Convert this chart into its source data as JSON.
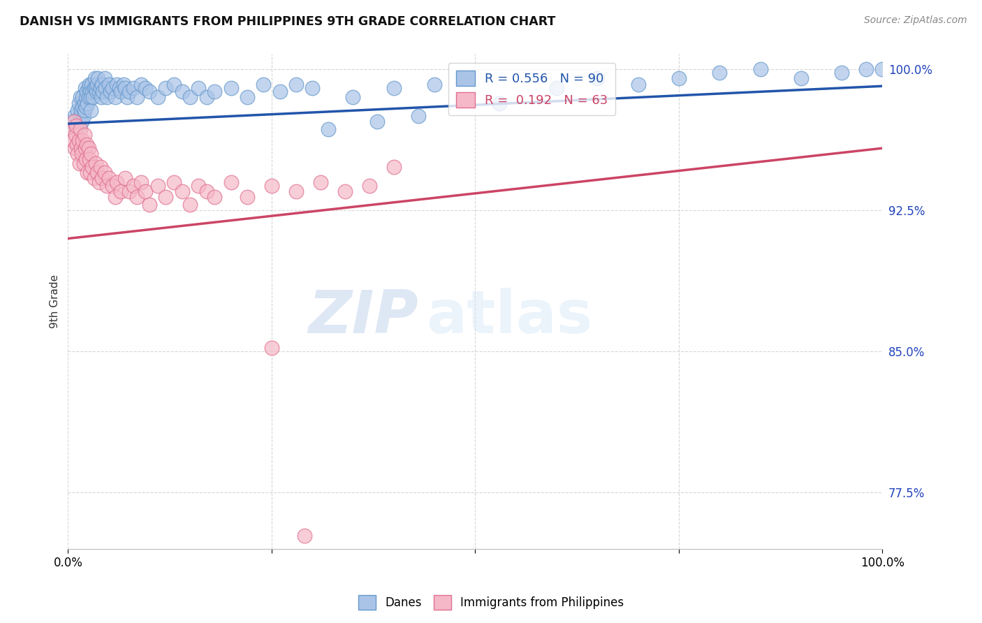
{
  "title": "DANISH VS IMMIGRANTS FROM PHILIPPINES 9TH GRADE CORRELATION CHART",
  "source": "Source: ZipAtlas.com",
  "ylabel": "9th Grade",
  "yticks": [
    0.775,
    0.85,
    0.925,
    1.0
  ],
  "ytick_labels": [
    "77.5%",
    "85.0%",
    "92.5%",
    "100.0%"
  ],
  "xlim": [
    0.0,
    1.0
  ],
  "ylim": [
    0.745,
    1.008
  ],
  "blue_R": 0.556,
  "blue_N": 90,
  "pink_R": 0.192,
  "pink_N": 63,
  "blue_color": "#aac4e8",
  "blue_edge": "#6699cc",
  "pink_color": "#f5b8c8",
  "pink_edge": "#e07090",
  "blue_line_color": "#2255aa",
  "pink_line_color": "#cc4466",
  "legend_label_blue": "Danes",
  "legend_label_pink": "Immigrants from Philippines",
  "watermark_zip": "ZIP",
  "watermark_atlas": "atlas",
  "blue_line_start_x": 0.0,
  "blue_line_start_y": 0.971,
  "blue_line_end_x": 1.0,
  "blue_line_end_y": 0.991,
  "pink_line_start_x": 0.0,
  "pink_line_start_y": 0.91,
  "pink_line_end_x": 1.0,
  "pink_line_end_y": 0.958,
  "blue_points_x": [
    0.005,
    0.008,
    0.01,
    0.012,
    0.013,
    0.014,
    0.015,
    0.015,
    0.016,
    0.017,
    0.018,
    0.018,
    0.019,
    0.02,
    0.02,
    0.021,
    0.022,
    0.022,
    0.023,
    0.024,
    0.025,
    0.025,
    0.026,
    0.027,
    0.028,
    0.028,
    0.029,
    0.03,
    0.031,
    0.032,
    0.033,
    0.034,
    0.035,
    0.036,
    0.037,
    0.038,
    0.04,
    0.041,
    0.042,
    0.043,
    0.045,
    0.046,
    0.048,
    0.05,
    0.052,
    0.055,
    0.058,
    0.06,
    0.063,
    0.065,
    0.068,
    0.07,
    0.073,
    0.075,
    0.08,
    0.085,
    0.09,
    0.095,
    0.1,
    0.11,
    0.12,
    0.13,
    0.14,
    0.15,
    0.16,
    0.17,
    0.18,
    0.2,
    0.22,
    0.24,
    0.26,
    0.28,
    0.3,
    0.35,
    0.4,
    0.45,
    0.6,
    0.65,
    0.7,
    0.75,
    0.8,
    0.85,
    0.9,
    0.95,
    0.98,
    1.0,
    0.53,
    0.43,
    0.38,
    0.32
  ],
  "blue_points_y": [
    0.972,
    0.975,
    0.968,
    0.978,
    0.982,
    0.97,
    0.985,
    0.975,
    0.978,
    0.972,
    0.985,
    0.98,
    0.975,
    0.982,
    0.978,
    0.99,
    0.985,
    0.98,
    0.988,
    0.982,
    0.99,
    0.985,
    0.992,
    0.988,
    0.985,
    0.978,
    0.992,
    0.988,
    0.985,
    0.99,
    0.995,
    0.99,
    0.988,
    0.992,
    0.995,
    0.988,
    0.99,
    0.985,
    0.992,
    0.988,
    0.995,
    0.99,
    0.985,
    0.992,
    0.988,
    0.99,
    0.985,
    0.992,
    0.99,
    0.988,
    0.992,
    0.99,
    0.985,
    0.988,
    0.99,
    0.985,
    0.992,
    0.99,
    0.988,
    0.985,
    0.99,
    0.992,
    0.988,
    0.985,
    0.99,
    0.985,
    0.988,
    0.99,
    0.985,
    0.992,
    0.988,
    0.992,
    0.99,
    0.985,
    0.99,
    0.992,
    0.99,
    0.995,
    0.992,
    0.995,
    0.998,
    1.0,
    0.995,
    0.998,
    1.0,
    1.0,
    0.982,
    0.975,
    0.972,
    0.968
  ],
  "pink_points_x": [
    0.005,
    0.006,
    0.007,
    0.008,
    0.009,
    0.01,
    0.011,
    0.012,
    0.013,
    0.014,
    0.015,
    0.016,
    0.017,
    0.018,
    0.019,
    0.02,
    0.021,
    0.022,
    0.023,
    0.024,
    0.025,
    0.026,
    0.027,
    0.028,
    0.03,
    0.032,
    0.034,
    0.036,
    0.038,
    0.04,
    0.042,
    0.045,
    0.048,
    0.05,
    0.055,
    0.058,
    0.06,
    0.065,
    0.07,
    0.075,
    0.08,
    0.085,
    0.09,
    0.095,
    0.1,
    0.11,
    0.12,
    0.13,
    0.14,
    0.15,
    0.16,
    0.17,
    0.18,
    0.2,
    0.22,
    0.25,
    0.28,
    0.31,
    0.34,
    0.37,
    0.4,
    0.25,
    0.29
  ],
  "pink_points_y": [
    0.968,
    0.962,
    0.972,
    0.958,
    0.965,
    0.97,
    0.96,
    0.955,
    0.962,
    0.95,
    0.968,
    0.958,
    0.955,
    0.962,
    0.95,
    0.965,
    0.958,
    0.952,
    0.96,
    0.945,
    0.958,
    0.952,
    0.945,
    0.955,
    0.948,
    0.942,
    0.95,
    0.945,
    0.94,
    0.948,
    0.942,
    0.945,
    0.938,
    0.942,
    0.938,
    0.932,
    0.94,
    0.935,
    0.942,
    0.935,
    0.938,
    0.932,
    0.94,
    0.935,
    0.928,
    0.938,
    0.932,
    0.94,
    0.935,
    0.928,
    0.938,
    0.935,
    0.932,
    0.94,
    0.932,
    0.938,
    0.935,
    0.94,
    0.935,
    0.938,
    0.948,
    0.852,
    0.752
  ]
}
